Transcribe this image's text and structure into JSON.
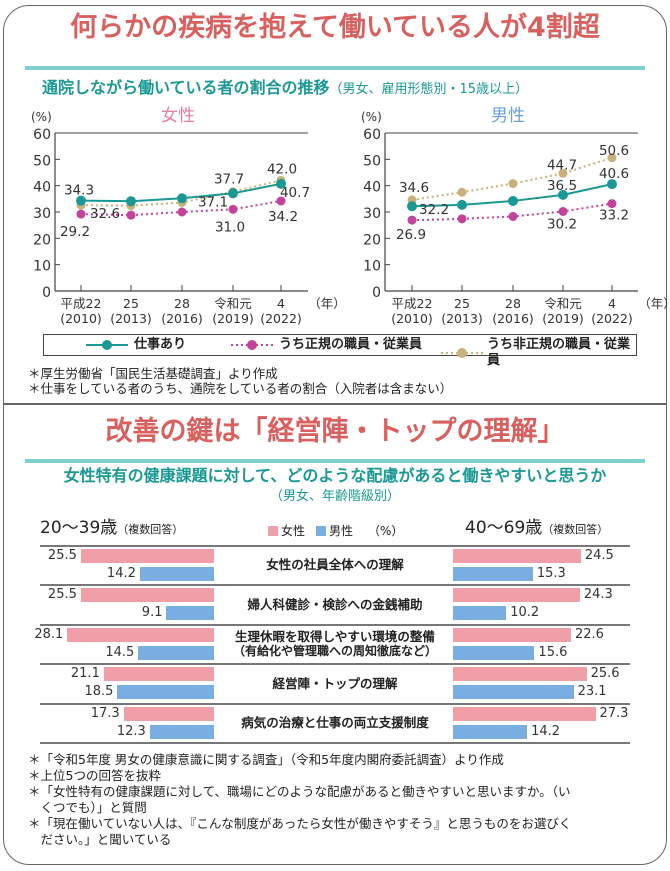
{
  "section1": {
    "title": "何らかの疾病を抱えて働いている人が4割超",
    "subtitle": "通院しながら働いている者の割合の推移",
    "subtitle_note": "（男女、雇用形態別・15歳以上）",
    "notes": [
      "＊厚生労働省「国民生活基礎調査」より作成",
      "＊仕事をしている者のうち、通院をしている者の割合（入院者は含まない）"
    ],
    "legend": [
      "仕事あり",
      "うち正規の職員・従業員",
      "うち非正規の職員・従業員"
    ]
  },
  "section2": {
    "title": "改善の鍵は「経営陣・トップの理解」",
    "subtitle": "女性特有の健康課題に対して、どのような配慮があると働きやすいと思うか",
    "subtitle_note": "（男女、年齢階級別）",
    "left_group": "20〜39歳",
    "right_group": "40〜69歳",
    "multi_answer": "（複数回答）",
    "legend_female": "女性",
    "legend_male": "男性",
    "unit": "（%）",
    "notes": [
      "＊「令和5年度 男女の健康意識に関する調査」（令和5年度内閣府委託調査）より作成",
      "＊上位5つの回答を抜粋",
      "＊「女性特有の健康課題に対して、職場にどのような配慮があると働きやすいと思いますか。（い",
      "　くつでも）」と質問",
      "＊「現在働いていない人は、『こんな制度があったら女性が働きやすそう』と思うものをお選びく",
      "　ださい。」と聞いている"
    ]
  },
  "colors": {
    "title": "#d8605e",
    "teal": "#1a9893",
    "regular": "#c2449a",
    "nonregular": "#c9b27a",
    "female_bar": "#f09fa8",
    "male_bar": "#7aaee0",
    "female_label": "#e57fa0",
    "male_label": "#6aa0d8"
  },
  "chart_data": [
    {
      "type": "line",
      "title": "女性",
      "ylabel": "(%)",
      "xunit": "（年）",
      "ylim": [
        0,
        60
      ],
      "yticks": [
        "0",
        "10",
        "20",
        "30",
        "40",
        "50",
        "60"
      ],
      "categories": [
        "平成22",
        "25",
        "28",
        "令和元",
        "4"
      ],
      "categories_sub": [
        "(2010)",
        "(2013)",
        "(2016)",
        "(2019)",
        "(2022)"
      ],
      "series": [
        {
          "name": "仕事あり",
          "values": [
            34.3,
            34.1,
            35.2,
            37.1,
            40.7
          ],
          "labels": [
            "34.3",
            null,
            null,
            "37.1",
            "40.7"
          ]
        },
        {
          "name": "うち正規の職員・従業員",
          "values": [
            29.2,
            28.8,
            30.0,
            31.0,
            34.2
          ],
          "labels": [
            "29.2",
            null,
            null,
            "31.0",
            "34.2"
          ]
        },
        {
          "name": "うち非正規の職員・従業員",
          "values": [
            32.6,
            32.4,
            33.6,
            37.7,
            42.0
          ],
          "labels": [
            "32.6",
            null,
            null,
            "37.7",
            "42.0"
          ]
        }
      ]
    },
    {
      "type": "line",
      "title": "男性",
      "ylabel": "(%)",
      "xunit": "（年）",
      "ylim": [
        0,
        60
      ],
      "yticks": [
        "0",
        "10",
        "20",
        "30",
        "40",
        "50",
        "60"
      ],
      "categories": [
        "平成22",
        "25",
        "28",
        "令和元",
        "4"
      ],
      "categories_sub": [
        "(2010)",
        "(2013)",
        "(2016)",
        "(2019)",
        "(2022)"
      ],
      "series": [
        {
          "name": "仕事あり",
          "values": [
            32.2,
            32.7,
            34.2,
            36.5,
            40.6
          ],
          "labels": [
            "32.2",
            null,
            null,
            "36.5",
            "40.6"
          ]
        },
        {
          "name": "うち正規の職員・従業員",
          "values": [
            26.9,
            27.4,
            28.3,
            30.2,
            33.2
          ],
          "labels": [
            "26.9",
            null,
            null,
            "30.2",
            "33.2"
          ]
        },
        {
          "name": "うち非正規の職員・従業員",
          "values": [
            34.6,
            37.5,
            40.8,
            44.7,
            50.6
          ],
          "labels": [
            "34.6",
            null,
            null,
            "44.7",
            "50.6"
          ]
        }
      ]
    },
    {
      "type": "bar",
      "orientation": "horizontal",
      "categories": [
        "女性の社員全体への理解",
        "婦人科健診・検診への金銭補助",
        "生理休暇を取得しやすい環境の整備\n（有給化や管理職への周知徹底など）",
        "経営陣・トップの理解",
        "病気の治療と仕事の両立支援制度"
      ],
      "groups": [
        {
          "name": "20〜39歳",
          "series": [
            {
              "name": "女性",
              "values": [
                25.5,
                25.5,
                28.1,
                21.1,
                17.3
              ]
            },
            {
              "name": "男性",
              "values": [
                14.2,
                9.1,
                14.5,
                18.5,
                12.3
              ]
            }
          ]
        },
        {
          "name": "40〜69歳",
          "series": [
            {
              "name": "女性",
              "values": [
                24.5,
                24.3,
                22.6,
                25.6,
                27.3
              ]
            },
            {
              "name": "男性",
              "values": [
                15.3,
                10.2,
                15.6,
                23.1,
                14.2
              ]
            }
          ]
        }
      ]
    }
  ]
}
